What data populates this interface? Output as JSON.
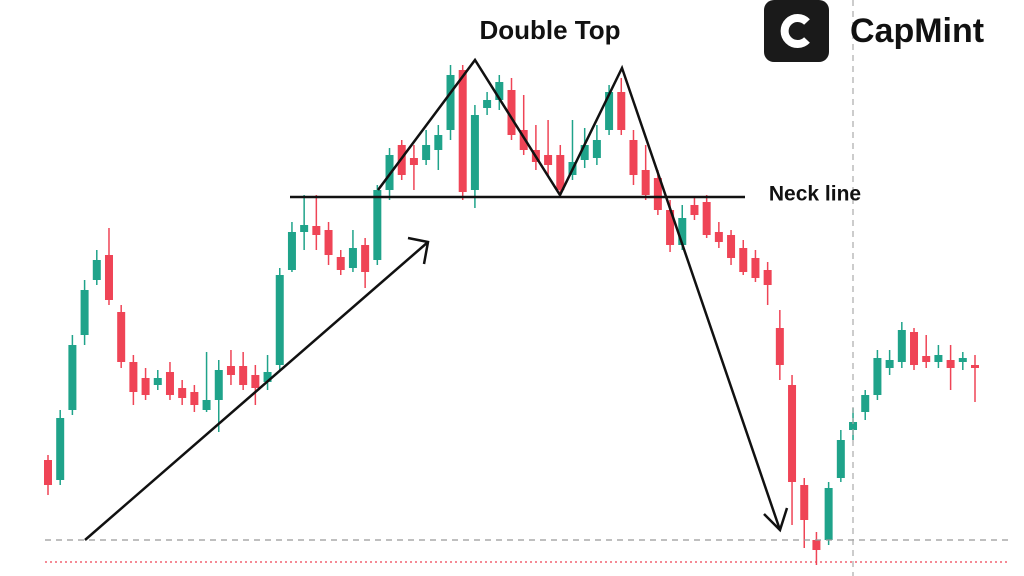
{
  "chart_data": {
    "type": "candlestick",
    "title": "Double Top",
    "annotations": [
      "Neck line"
    ],
    "brand": "CapMint",
    "up_color": "#1fa38a",
    "down_color": "#ef4456",
    "ylim": [
      0,
      576
    ],
    "open": [
      116,
      96,
      166,
      241,
      296,
      321,
      264,
      214,
      198,
      191,
      204,
      188,
      184,
      166,
      176,
      210,
      210,
      201,
      194,
      211,
      306,
      344,
      350,
      346,
      319,
      308,
      331,
      316,
      386,
      431,
      418,
      416,
      426,
      446,
      506,
      386,
      468,
      476,
      486,
      446,
      426,
      421,
      421,
      401,
      416,
      418,
      446,
      484,
      436,
      406,
      398,
      366,
      331,
      371,
      374,
      344,
      341,
      328,
      318,
      306,
      248,
      191,
      91,
      36,
      36,
      98,
      146,
      164,
      181,
      208,
      214,
      244,
      220,
      214,
      216,
      214,
      211
    ],
    "high": [
      121,
      166,
      241,
      296,
      326,
      348,
      271,
      221,
      208,
      206,
      214,
      196,
      191,
      224,
      216,
      226,
      224,
      211,
      221,
      308,
      354,
      381,
      381,
      354,
      326,
      346,
      338,
      391,
      428,
      436,
      431,
      446,
      451,
      511,
      511,
      471,
      484,
      501,
      498,
      481,
      451,
      456,
      431,
      456,
      448,
      451,
      491,
      498,
      446,
      431,
      406,
      376,
      371,
      378,
      381,
      354,
      346,
      336,
      326,
      314,
      266,
      201,
      98,
      44,
      94,
      146,
      168,
      186,
      226,
      226,
      254,
      248,
      241,
      231,
      231,
      224,
      221
    ],
    "low": [
      81,
      91,
      161,
      231,
      291,
      271,
      208,
      171,
      176,
      186,
      176,
      171,
      164,
      164,
      144,
      191,
      186,
      171,
      186,
      206,
      304,
      326,
      326,
      311,
      301,
      304,
      288,
      311,
      376,
      396,
      386,
      411,
      406,
      436,
      376,
      368,
      461,
      466,
      436,
      421,
      406,
      401,
      381,
      396,
      408,
      411,
      441,
      441,
      391,
      376,
      361,
      324,
      326,
      356,
      338,
      328,
      311,
      301,
      294,
      271,
      196,
      51,
      28,
      11,
      31,
      94,
      136,
      156,
      176,
      201,
      208,
      206,
      208,
      208,
      186,
      206,
      174
    ],
    "close": [
      91,
      158,
      231,
      286,
      316,
      276,
      214,
      184,
      181,
      198,
      181,
      178,
      171,
      176,
      206,
      201,
      191,
      188,
      204,
      301,
      344,
      351,
      341,
      321,
      306,
      328,
      304,
      386,
      421,
      401,
      411,
      431,
      441,
      501,
      384,
      461,
      476,
      494,
      441,
      426,
      414,
      411,
      386,
      414,
      431,
      436,
      484,
      446,
      401,
      381,
      366,
      331,
      358,
      361,
      341,
      334,
      318,
      304,
      298,
      291,
      211,
      94,
      56,
      26,
      88,
      136,
      154,
      181,
      218,
      216,
      246,
      211,
      214,
      221,
      208,
      218,
      208
    ]
  }
}
